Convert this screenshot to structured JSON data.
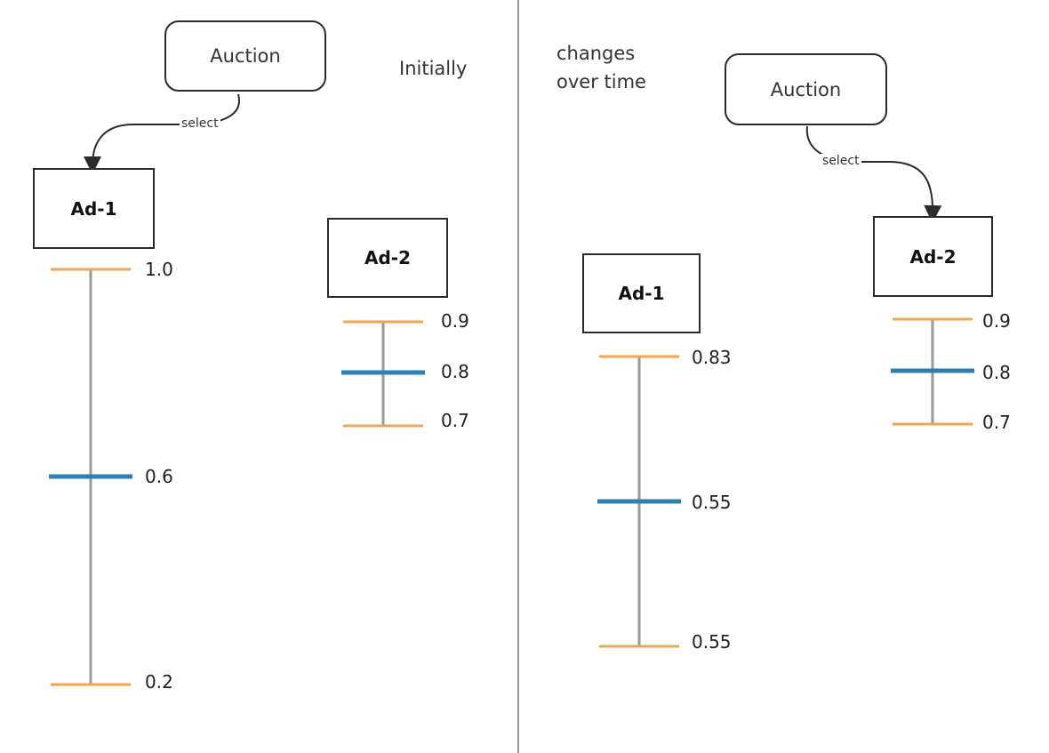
{
  "colors": {
    "bound": "#f0a550",
    "mean": "#2e7fb0",
    "stem": "#9a9a9a",
    "box": "#2b2b2b"
  },
  "left": {
    "label": "Initially",
    "auction": "Auction",
    "arrow_label": "select",
    "ad1": {
      "name": "Ad-1",
      "upper": "1.0",
      "mean": "0.6",
      "lower": "0.2"
    },
    "ad2": {
      "name": "Ad-2",
      "upper": "0.9",
      "mean": "0.8",
      "lower": "0.7"
    }
  },
  "right": {
    "label_line1": "changes",
    "label_line2": "over time",
    "auction": "Auction",
    "arrow_label": "select",
    "ad1": {
      "name": "Ad-1",
      "upper": "0.83",
      "mean": "0.55",
      "lower": "0.55"
    },
    "ad2": {
      "name": "Ad-2",
      "upper": "0.9",
      "mean": "0.8",
      "lower": "0.7"
    }
  }
}
